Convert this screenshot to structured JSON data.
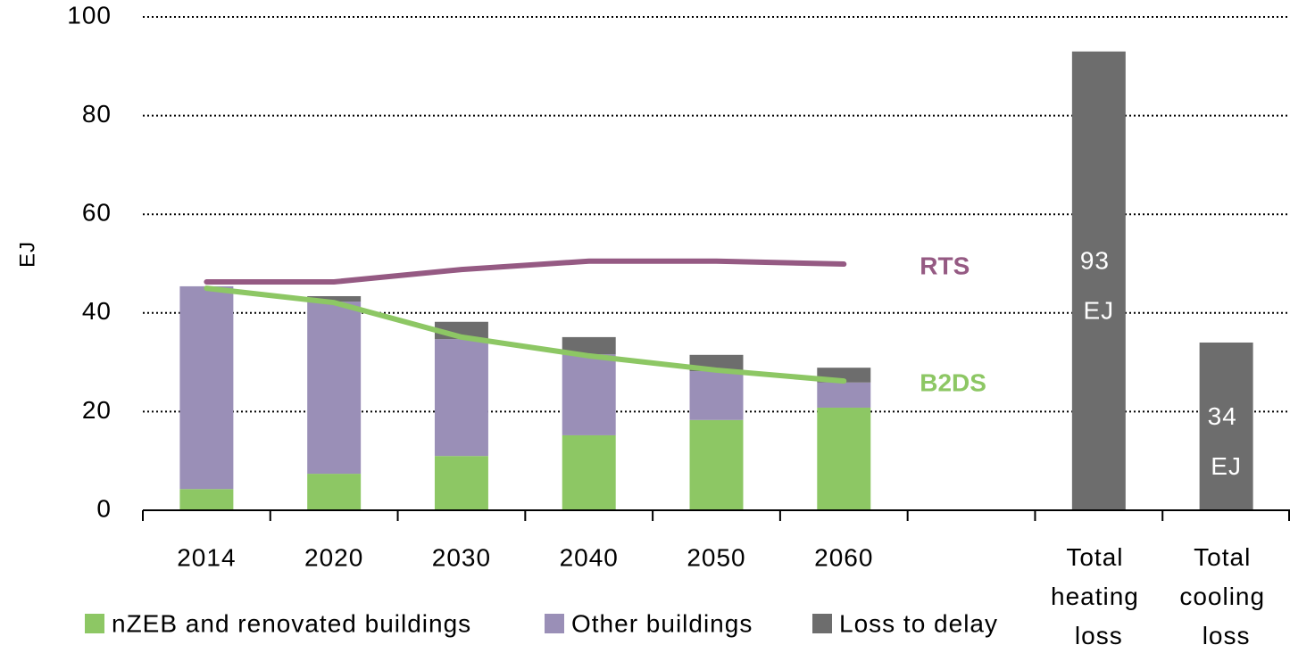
{
  "chart_data": {
    "type": "bar",
    "y_label": "EJ",
    "categories": [
      "2014",
      "2020",
      "2030",
      "2040",
      "2050",
      "2060",
      null,
      "Total heating loss",
      "Total cooling loss"
    ],
    "series": [
      {
        "name": "nZEB and renovated buildings",
        "color": "#8dc764",
        "values": [
          4.3,
          7.4,
          11,
          15.2,
          18.3,
          20.8,
          null,
          null,
          null
        ]
      },
      {
        "name": "Other buildings",
        "color": "#9a8fb7",
        "values": [
          41.1,
          34.9,
          23.7,
          16.4,
          9.9,
          5.1,
          null,
          null,
          null
        ]
      },
      {
        "name": "Loss to delay",
        "color": "#6d6d6d",
        "values": [
          null,
          1.1,
          3.5,
          3.5,
          3.3,
          3,
          null,
          93,
          34
        ],
        "value_labels": [
          null,
          null,
          null,
          null,
          null,
          null,
          null,
          "93 EJ",
          "34 EJ"
        ]
      },
      {
        "name": "RTS",
        "type": "line",
        "color": "#955a83",
        "values": [
          46.3,
          46.3,
          48.8,
          50.5,
          50.5,
          49.9,
          null,
          null,
          null
        ]
      },
      {
        "name": "B2DS",
        "type": "line",
        "color": "#8dc764",
        "values": [
          45,
          42.1,
          35.1,
          31.3,
          28.4,
          26.2,
          null,
          null,
          null
        ]
      }
    ],
    "ylim": [
      0,
      100
    ],
    "yticks": [
      0,
      20,
      40,
      60,
      80,
      100
    ],
    "grid": true
  }
}
